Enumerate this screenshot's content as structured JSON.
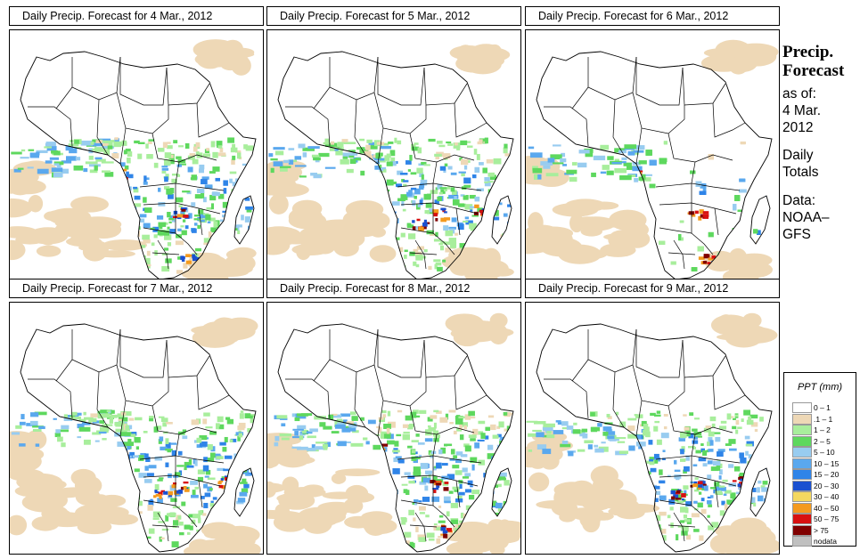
{
  "panels": [
    {
      "title": "Daily Precip. Forecast for  4 Mar., 2012",
      "seed": 11,
      "day": 0
    },
    {
      "title": "Daily Precip. Forecast for  5 Mar., 2012",
      "seed": 23,
      "day": 1
    },
    {
      "title": "Daily Precip. Forecast for  6 Mar., 2012",
      "seed": 37,
      "day": 2
    },
    {
      "title": "Daily Precip. Forecast for  7 Mar., 2012",
      "seed": 41,
      "day": 3
    },
    {
      "title": "Daily Precip. Forecast for  8 Mar., 2012",
      "seed": 53,
      "day": 4
    },
    {
      "title": "Daily Precip. Forecast for  9 Mar., 2012",
      "seed": 67,
      "day": 5
    }
  ],
  "side": {
    "title_line1": "Precip.",
    "title_line2": "Forecast",
    "asof_line1": "as of:",
    "asof_line2": "4 Mar.",
    "asof_line3": "2012",
    "totals_line1": "Daily",
    "totals_line2": "Totals",
    "data_line1": "Data:",
    "data_line2": "NOAA–",
    "data_line3": "GFS"
  },
  "legend": {
    "title": "PPT (mm)",
    "items": [
      {
        "label": "0 – 1",
        "color": "#ffffff"
      },
      {
        "label": ".1 – 1",
        "color": "#eed8b6"
      },
      {
        "label": "1 – 2",
        "color": "#a8ee9c"
      },
      {
        "label": "2 – 5",
        "color": "#5ed85e"
      },
      {
        "label": "5 – 10",
        "color": "#98ccf0"
      },
      {
        "label": "10 – 15",
        "color": "#5aa8ee"
      },
      {
        "label": "15 – 20",
        "color": "#2f84e8"
      },
      {
        "label": "20 – 30",
        "color": "#1a50d0"
      },
      {
        "label": "30 – 40",
        "color": "#f4d860"
      },
      {
        "label": "40 – 50",
        "color": "#f49a1e"
      },
      {
        "label": "50 – 75",
        "color": "#d81010"
      },
      {
        "label": "> 75",
        "color": "#800000"
      },
      {
        "label": "nodata",
        "color": "#c0c0c0"
      }
    ]
  }
}
